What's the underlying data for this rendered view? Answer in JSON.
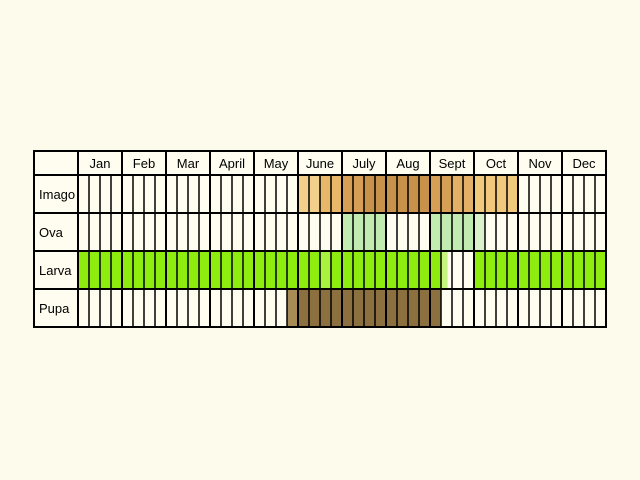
{
  "chart_data": {
    "type": "table",
    "months": [
      "Jan",
      "Feb",
      "Mar",
      "April",
      "May",
      "June",
      "July",
      "Aug",
      "Sept",
      "Oct",
      "Nov",
      "Dec"
    ],
    "stages": [
      {
        "label": "Imago",
        "spans": [
          {
            "from": 5.0,
            "to": 5.5,
            "color": "#f2cf8a"
          },
          {
            "from": 5.5,
            "to": 6.0,
            "color": "#e8b868"
          },
          {
            "from": 6.0,
            "to": 6.5,
            "color": "#d69f55"
          },
          {
            "from": 6.5,
            "to": 8.0,
            "color": "#c8924a"
          },
          {
            "from": 8.0,
            "to": 8.5,
            "color": "#d69f55"
          },
          {
            "from": 8.5,
            "to": 9.0,
            "color": "#e3b066"
          },
          {
            "from": 9.0,
            "to": 10.0,
            "color": "#f0c97c"
          }
        ]
      },
      {
        "label": "Ova",
        "spans": [
          {
            "from": 6.0,
            "to": 7.0,
            "color": "#c2ebb1"
          },
          {
            "from": 8.0,
            "to": 9.0,
            "color": "#c2ebb1"
          },
          {
            "from": 9.0,
            "to": 9.25,
            "color": "#d9f2cc"
          }
        ]
      },
      {
        "label": "Larva",
        "spans": [
          {
            "from": 0.0,
            "to": 5.5,
            "color": "#8fec0f"
          },
          {
            "from": 5.5,
            "to": 5.75,
            "color": "#a8f33d"
          },
          {
            "from": 5.75,
            "to": 8.25,
            "color": "#8fec0f"
          },
          {
            "from": 8.25,
            "to": 8.4,
            "color": "#c6f57f"
          },
          {
            "from": 9.0,
            "to": 12.0,
            "color": "#8fec0f"
          }
        ]
      },
      {
        "label": "Pupa",
        "spans": [
          {
            "from": 4.75,
            "to": 5.0,
            "color": "#a88c55"
          },
          {
            "from": 5.0,
            "to": 8.25,
            "color": "#8c7040"
          }
        ]
      }
    ]
  }
}
